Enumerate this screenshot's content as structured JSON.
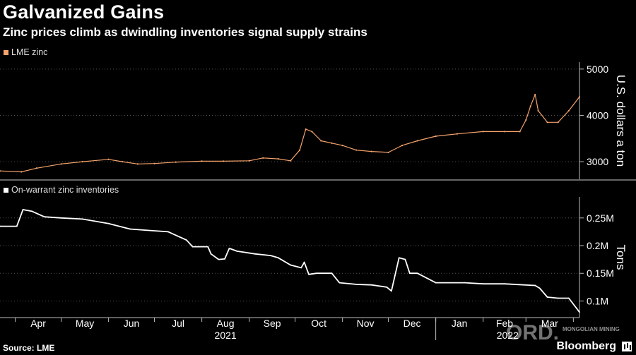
{
  "title": "Galvanized Gains",
  "subtitle": "Zinc prices climb as dwindling inventories signal supply strains",
  "source": "Source: LME",
  "brand": "Bloomberg",
  "watermark": {
    "main": "ORD.",
    "sub": "MONGOLIAN MINING"
  },
  "colors": {
    "background": "#000000",
    "price": "#f5a36b",
    "inventory": "#ffffff",
    "grid": "#555555"
  },
  "chart_data": [
    {
      "type": "line",
      "legend": "LME zinc",
      "ylabel": "U.S. dollars a ton",
      "yticks": [
        3000,
        4000,
        5000
      ],
      "ylim": [
        2620,
        5150
      ],
      "x": [
        "2021-03-22",
        "2021-04-05",
        "2021-04-15",
        "2021-05-01",
        "2021-05-15",
        "2021-06-01",
        "2021-06-10",
        "2021-06-20",
        "2021-07-01",
        "2021-07-15",
        "2021-08-01",
        "2021-08-15",
        "2021-09-01",
        "2021-09-10",
        "2021-09-20",
        "2021-09-28",
        "2021-10-04",
        "2021-10-08",
        "2021-10-12",
        "2021-10-18",
        "2021-10-25",
        "2021-11-01",
        "2021-11-10",
        "2021-11-20",
        "2021-12-01",
        "2021-12-10",
        "2021-12-20",
        "2022-01-01",
        "2022-01-15",
        "2022-02-01",
        "2022-02-15",
        "2022-02-25",
        "2022-03-01",
        "2022-03-04",
        "2022-03-07",
        "2022-03-09",
        "2022-03-15",
        "2022-03-22",
        "2022-03-29",
        "2022-04-05"
      ],
      "series": [
        {
          "name": "LME zinc",
          "values": [
            2800,
            2780,
            2860,
            2950,
            3000,
            3050,
            3000,
            2950,
            2960,
            2990,
            3010,
            3010,
            3020,
            3080,
            3060,
            3020,
            3250,
            3700,
            3650,
            3450,
            3400,
            3350,
            3250,
            3220,
            3200,
            3350,
            3450,
            3550,
            3600,
            3650,
            3650,
            3650,
            3900,
            4200,
            4450,
            4100,
            3850,
            3850,
            4100,
            4400
          ]
        }
      ]
    },
    {
      "type": "line",
      "legend": "On-warrant zinc inventories",
      "ylabel": "Tons",
      "yticks": [
        100000,
        150000,
        200000,
        250000
      ],
      "ytick_labels": [
        "0.1M",
        "0.15M",
        "0.2M",
        "0.25M"
      ],
      "ylim": [
        70000,
        288000
      ],
      "x": [
        "2021-03-22",
        "2021-04-02",
        "2021-04-06",
        "2021-04-12",
        "2021-04-20",
        "2021-05-01",
        "2021-05-15",
        "2021-06-01",
        "2021-06-15",
        "2021-06-25",
        "2021-07-10",
        "2021-07-22",
        "2021-07-26",
        "2021-08-05",
        "2021-08-07",
        "2021-08-12",
        "2021-08-16",
        "2021-08-19",
        "2021-08-24",
        "2021-09-05",
        "2021-09-15",
        "2021-09-20",
        "2021-09-28",
        "2021-10-05",
        "2021-10-07",
        "2021-10-10",
        "2021-10-15",
        "2021-10-25",
        "2021-10-30",
        "2021-11-10",
        "2021-11-20",
        "2021-11-30",
        "2021-12-03",
        "2021-12-08",
        "2021-12-12",
        "2021-12-15",
        "2021-12-20",
        "2022-01-01",
        "2022-01-20",
        "2022-02-01",
        "2022-02-15",
        "2022-02-28",
        "2022-03-07",
        "2022-03-10",
        "2022-03-15",
        "2022-03-22",
        "2022-03-29",
        "2022-04-05"
      ],
      "series": [
        {
          "name": "On-warrant zinc inventories",
          "values": [
            235000,
            235000,
            265000,
            262000,
            252000,
            250000,
            248000,
            240000,
            230000,
            228000,
            225000,
            210000,
            198000,
            198000,
            185000,
            175000,
            176000,
            195000,
            190000,
            185000,
            182000,
            178000,
            165000,
            160000,
            170000,
            148000,
            150000,
            150000,
            133000,
            130000,
            129000,
            125000,
            118000,
            178000,
            175000,
            150000,
            150000,
            133000,
            133000,
            131000,
            131000,
            129000,
            128000,
            123000,
            107000,
            105000,
            105000,
            80000
          ]
        }
      ]
    }
  ],
  "xaxis": {
    "months": [
      "Apr",
      "May",
      "Jun",
      "Jul",
      "Aug",
      "Sep",
      "Oct",
      "Nov",
      "Dec",
      "Jan",
      "Feb",
      "Mar"
    ],
    "years": [
      "2021",
      "2022"
    ]
  }
}
